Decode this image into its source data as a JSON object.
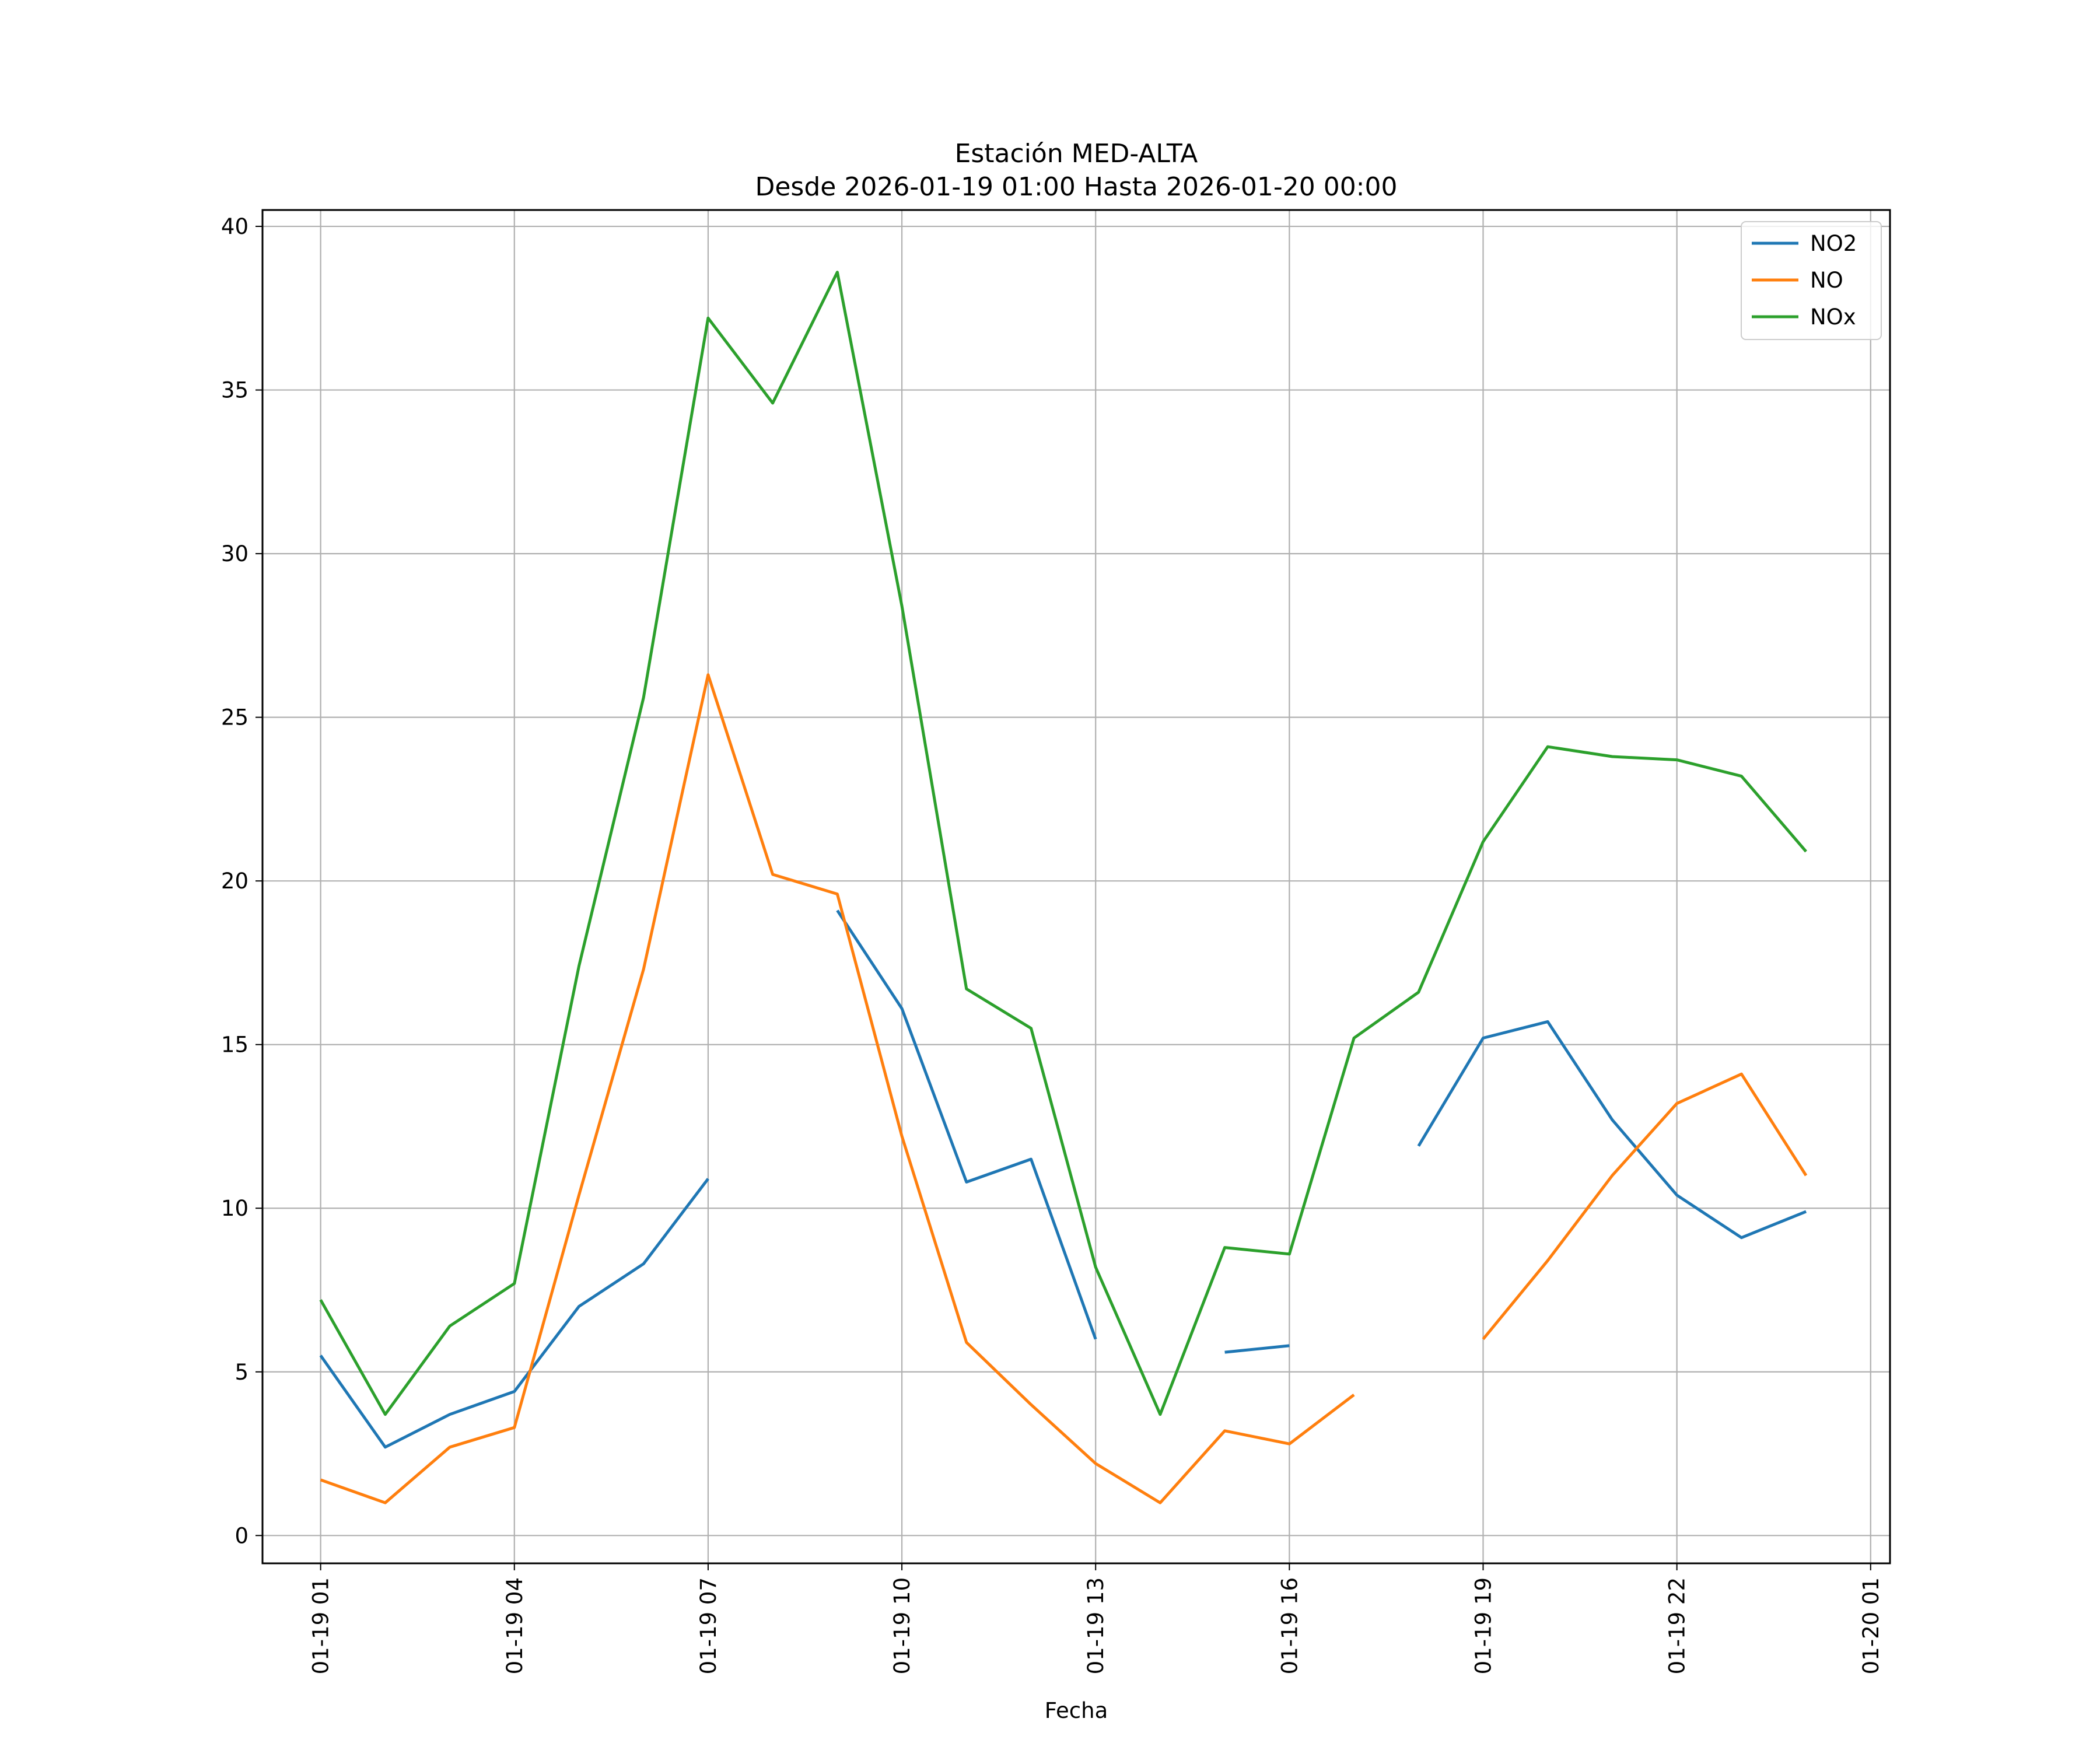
{
  "chart_data": {
    "type": "line",
    "title": "Estación MED-ALTA",
    "subtitle": "Desde 2026-01-19 01:00 Hasta 2026-01-20 00:00",
    "xlabel": "Fecha",
    "ylabel": "",
    "x": [
      "01-19 01",
      "01-19 02",
      "01-19 03",
      "01-19 04",
      "01-19 05",
      "01-19 06",
      "01-19 07",
      "01-19 08",
      "01-19 09",
      "01-19 10",
      "01-19 11",
      "01-19 12",
      "01-19 13",
      "01-19 14",
      "01-19 15",
      "01-19 16",
      "01-19 17",
      "01-19 18",
      "01-19 19",
      "01-19 20",
      "01-19 21",
      "01-19 22",
      "01-19 23",
      "01-20 00"
    ],
    "xticks": [
      "01-19 01",
      "01-19 04",
      "01-19 07",
      "01-19 10",
      "01-19 13",
      "01-19 16",
      "01-19 19",
      "01-19 22",
      "01-20 01"
    ],
    "xlim_hours": [
      -0.9,
      24.3
    ],
    "ylim": [
      -0.85,
      40.5
    ],
    "yticks": [
      0,
      5,
      10,
      15,
      20,
      25,
      30,
      35,
      40
    ],
    "grid": true,
    "legend_position": "upper-right",
    "series": [
      {
        "name": "NO2",
        "color": "#1f77b4",
        "values": [
          5.5,
          2.7,
          3.7,
          4.4,
          7.0,
          8.3,
          10.9,
          null,
          19.1,
          16.1,
          10.8,
          11.5,
          6.0,
          null,
          5.6,
          5.8,
          null,
          11.9,
          15.2,
          15.7,
          12.7,
          10.4,
          9.1,
          9.9
        ]
      },
      {
        "name": "NO",
        "color": "#ff7f0e",
        "values": [
          1.7,
          1.0,
          2.7,
          3.3,
          10.4,
          17.3,
          26.3,
          20.2,
          19.6,
          12.2,
          5.9,
          4.0,
          2.2,
          1.0,
          3.2,
          2.8,
          4.3,
          null,
          6.0,
          8.4,
          11.0,
          13.2,
          14.1,
          11.0
        ]
      },
      {
        "name": "NOx",
        "color": "#2ca02c",
        "values": [
          7.2,
          3.7,
          6.4,
          7.7,
          17.4,
          25.6,
          37.2,
          34.6,
          38.6,
          28.4,
          16.7,
          15.5,
          8.2,
          3.7,
          8.8,
          8.6,
          15.2,
          16.6,
          21.2,
          24.1,
          23.8,
          23.7,
          23.2,
          20.9
        ]
      }
    ]
  }
}
